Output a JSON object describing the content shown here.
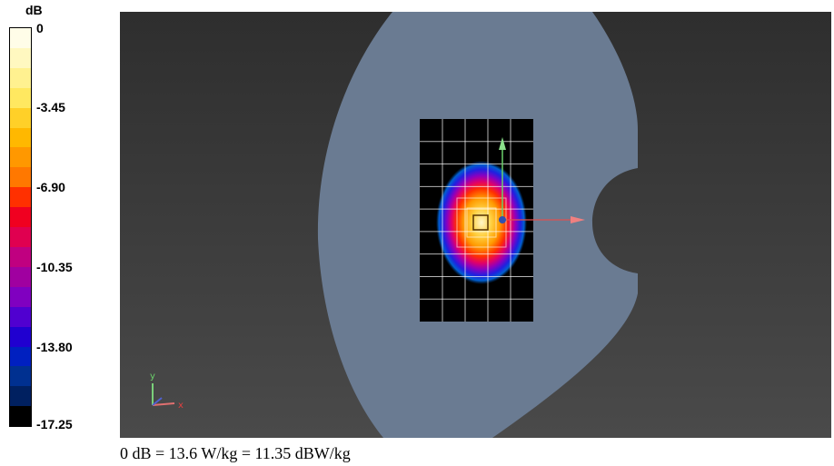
{
  "colorbar": {
    "title": "dB",
    "ticks": [
      "0",
      "-3.45",
      "-6.90",
      "-10.35",
      "-13.80",
      "-17.25"
    ],
    "colors": [
      "#fffde8",
      "#fff8c0",
      "#fff190",
      "#ffe860",
      "#ffd028",
      "#ffb800",
      "#ff9800",
      "#ff7800",
      "#ff3000",
      "#f00020",
      "#e00050",
      "#c00080",
      "#a000a0",
      "#8000c0",
      "#5000d0",
      "#2000d0",
      "#0020c0",
      "#003090",
      "#002060",
      "#000000"
    ]
  },
  "viewport": {
    "axis_y_label": "y",
    "axis_x_label": "x"
  },
  "caption": "0 dB = 13.6 W/kg = 11.35 dBW/kg"
}
